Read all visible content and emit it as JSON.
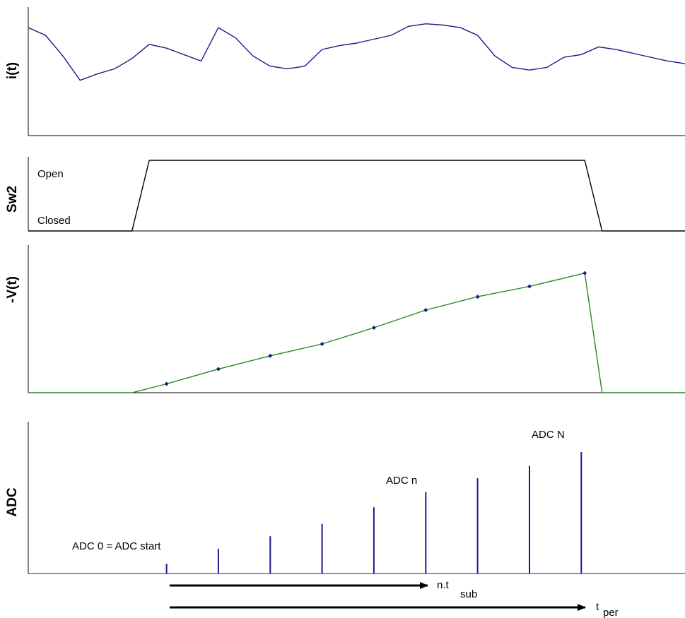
{
  "colors": {
    "current": "#1a1a8c",
    "switch": "#000000",
    "voltage": "#228b22",
    "marker": "#1a1a8c",
    "adc": "#1a1a8c",
    "arrow": "#000000"
  },
  "panels": {
    "current": {
      "ylabel": "i(t)"
    },
    "switch": {
      "ylabel": "Sw2",
      "open_label": "Open",
      "closed_label": "Closed"
    },
    "voltage": {
      "ylabel": "-V(t)"
    },
    "adc": {
      "ylabel": "ADC",
      "label_start": "ADC 0 = ADC start",
      "label_n": "ADC n",
      "label_N": "ADC N"
    }
  },
  "arrows": {
    "sub": {
      "main": "n.t",
      "subscript": "sub"
    },
    "per": {
      "main": "t",
      "subscript": "per"
    }
  },
  "chart_data": [
    {
      "type": "line",
      "ylabel": "i(t)",
      "x": [
        0,
        0.5,
        1.0,
        1.5,
        2.0,
        2.5,
        3.0,
        3.5,
        4.0,
        4.5,
        5.0,
        5.5,
        6.0,
        6.5,
        7.0,
        7.5,
        8.0,
        8.5,
        9.0,
        9.5,
        10.0,
        10.5,
        11.0,
        11.5,
        12.0,
        12.5,
        13.0,
        13.5,
        14.0,
        14.5,
        15.0,
        15.5,
        16.0,
        16.5,
        17.0,
        17.5,
        18.0,
        18.5,
        19.0
      ],
      "values": [
        0.84,
        0.78,
        0.62,
        0.43,
        0.48,
        0.52,
        0.6,
        0.71,
        0.68,
        0.63,
        0.58,
        0.84,
        0.76,
        0.62,
        0.54,
        0.52,
        0.54,
        0.67,
        0.7,
        0.72,
        0.75,
        0.78,
        0.85,
        0.87,
        0.86,
        0.84,
        0.78,
        0.62,
        0.53,
        0.51,
        0.53,
        0.61,
        0.63,
        0.69,
        0.67,
        0.64,
        0.61,
        0.58,
        0.56
      ],
      "ylim": [
        0,
        1
      ],
      "xlim": [
        0,
        19
      ]
    },
    {
      "type": "line",
      "ylabel": "Sw2",
      "x": [
        0,
        3.0,
        3.5,
        16.1,
        16.6,
        19.0
      ],
      "values": [
        0,
        0,
        1,
        1,
        0,
        0
      ],
      "ylim": [
        0,
        1.05
      ],
      "xlim": [
        0,
        19
      ],
      "state_labels": [
        "Closed",
        "Open"
      ]
    },
    {
      "type": "line",
      "ylabel": "-V(t)",
      "x": [
        0,
        3.0,
        4.0,
        5.5,
        7.0,
        8.5,
        10.0,
        11.5,
        13.0,
        14.5,
        16.1,
        16.6,
        19.0
      ],
      "values": [
        0,
        0,
        0.06,
        0.16,
        0.25,
        0.33,
        0.44,
        0.56,
        0.65,
        0.72,
        0.81,
        0,
        0
      ],
      "markers_x": [
        4.0,
        5.5,
        7.0,
        8.5,
        10.0,
        11.5,
        13.0,
        14.5,
        16.1
      ],
      "ylim": [
        0,
        1
      ],
      "xlim": [
        0,
        19
      ]
    },
    {
      "type": "bar",
      "ylabel": "ADC",
      "x": [
        4.0,
        5.5,
        7.0,
        8.5,
        10.0,
        11.5,
        13.0,
        14.5,
        16.0
      ],
      "values": [
        0.07,
        0.18,
        0.27,
        0.36,
        0.48,
        0.59,
        0.69,
        0.78,
        0.88
      ],
      "ylim": [
        0,
        1.1
      ],
      "xlim": [
        0,
        19
      ]
    }
  ]
}
